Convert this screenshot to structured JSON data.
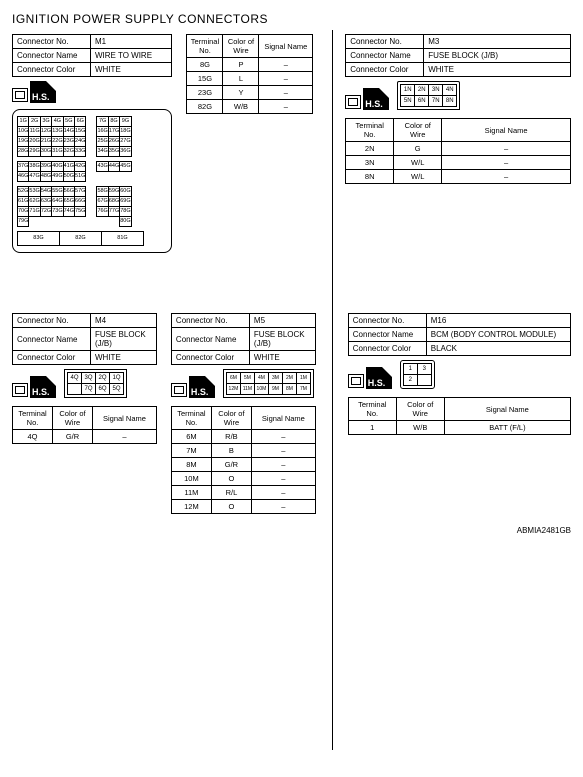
{
  "title": "IGNITION POWER SUPPLY CONNECTORS",
  "footer": "ABMIA2481GB",
  "labels": {
    "connector_no": "Connector No.",
    "connector_name": "Connector Name",
    "connector_color": "Connector Color",
    "terminal_no": "Terminal No.",
    "color_of_wire": "Color of Wire",
    "signal_name": "Signal Name",
    "hs": "H.S."
  },
  "m1": {
    "no": "M1",
    "name": "WIRE TO WIRE",
    "color": "WHITE",
    "diagram_rows": [
      [
        "1G",
        "2G",
        "3G",
        "4G",
        "5G",
        "6G",
        "",
        "7G",
        "8G",
        "9G"
      ],
      [
        "10G",
        "11G",
        "12G",
        "13G",
        "14G",
        "15G",
        "",
        "16G",
        "17G",
        "18G"
      ],
      [
        "19G",
        "20G",
        "21G",
        "22G",
        "23G",
        "24G",
        "",
        "25G",
        "26G",
        "27G"
      ],
      [
        "28G",
        "29G",
        "30G",
        "31G",
        "32G",
        "33G",
        "",
        "34G",
        "35G",
        "36G"
      ]
    ],
    "diagram_rows2": [
      [
        "37G",
        "38G",
        "39G",
        "40G",
        "41G",
        "42G",
        "",
        "43G",
        "44G",
        "45G"
      ],
      [
        "46G",
        "47G",
        "48G",
        "49G",
        "50G",
        "51G",
        "",
        "",
        "",
        ""
      ]
    ],
    "diagram_rows3": [
      [
        "52G",
        "53G",
        "54G",
        "55G",
        "56G",
        "57G",
        "",
        "58G",
        "59G",
        "60G"
      ],
      [
        "61G",
        "62G",
        "63G",
        "64G",
        "65G",
        "66G",
        "",
        "67G",
        "68G",
        "69G"
      ],
      [
        "70G",
        "71G",
        "72G",
        "73G",
        "74G",
        "75G",
        "",
        "76G",
        "77G",
        "78G"
      ],
      [
        "79G",
        "",
        "",
        "",
        "",
        "",
        "",
        "",
        "",
        "80G"
      ]
    ],
    "big_cells": [
      "81G",
      "82G",
      "83G"
    ]
  },
  "m1_pins": [
    {
      "t": "8G",
      "c": "P",
      "s": "–"
    },
    {
      "t": "15G",
      "c": "L",
      "s": "–"
    },
    {
      "t": "23G",
      "c": "Y",
      "s": "–"
    },
    {
      "t": "82G",
      "c": "W/B",
      "s": "–"
    }
  ],
  "m3": {
    "no": "M3",
    "name": "FUSE BLOCK (J/B)",
    "color": "WHITE",
    "grid": [
      [
        "1N",
        "2N",
        "3N",
        "4N"
      ],
      [
        "5N",
        "6N",
        "7N",
        "8N"
      ]
    ]
  },
  "m3_pins": [
    {
      "t": "2N",
      "c": "G",
      "s": "–"
    },
    {
      "t": "3N",
      "c": "W/L",
      "s": "–"
    },
    {
      "t": "8N",
      "c": "W/L",
      "s": "–"
    }
  ],
  "m4": {
    "no": "M4",
    "name": "FUSE BLOCK (J/B)",
    "color": "WHITE",
    "grid": [
      [
        "4Q",
        "3Q",
        "2Q",
        "1Q"
      ],
      [
        "",
        "7Q",
        "6Q",
        "5Q"
      ]
    ]
  },
  "m4_pins": [
    {
      "t": "4Q",
      "c": "G/R",
      "s": "–"
    }
  ],
  "m5": {
    "no": "M5",
    "name": "FUSE BLOCK (J/B)",
    "color": "WHITE",
    "grid": [
      [
        "6M",
        "5M",
        "4M",
        "3M",
        "2M",
        "1M"
      ],
      [
        "12M",
        "11M",
        "10M",
        "9M",
        "8M",
        "7M"
      ]
    ]
  },
  "m5_pins": [
    {
      "t": "6M",
      "c": "R/B",
      "s": "–"
    },
    {
      "t": "7M",
      "c": "B",
      "s": "–"
    },
    {
      "t": "8M",
      "c": "G/R",
      "s": "–"
    },
    {
      "t": "10M",
      "c": "O",
      "s": "–"
    },
    {
      "t": "11M",
      "c": "R/L",
      "s": "–"
    },
    {
      "t": "12M",
      "c": "O",
      "s": "–"
    }
  ],
  "m16": {
    "no": "M16",
    "name": "BCM (BODY CONTROL MODULE)",
    "color": "BLACK",
    "grid": [
      [
        "1",
        "3"
      ],
      [
        "2",
        ""
      ]
    ]
  },
  "m16_pins": [
    {
      "t": "1",
      "c": "W/B",
      "s": "BATT (F/L)"
    }
  ]
}
